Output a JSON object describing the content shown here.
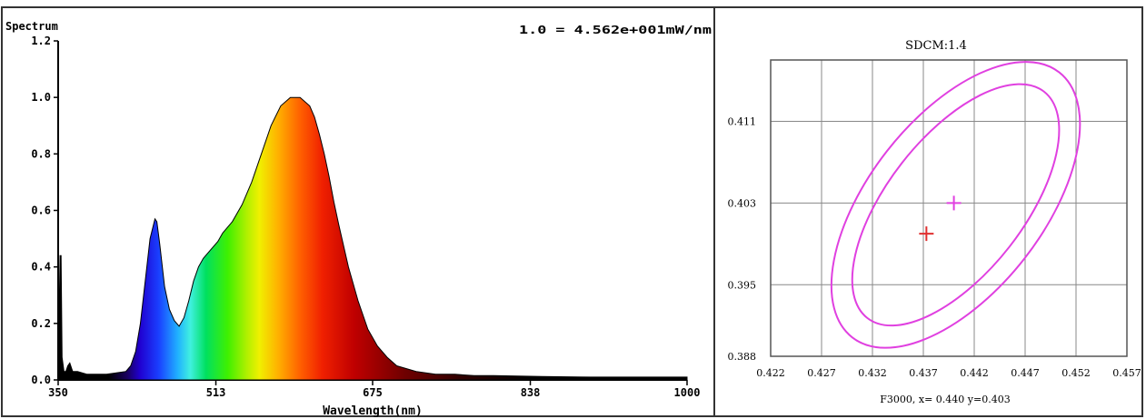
{
  "chart_data": [
    {
      "type": "area",
      "title": "Spectrum",
      "scale_note": "1.0 = 4.562e+001mW/nm",
      "xlabel": "Wavelength(nm)",
      "ylabel": "",
      "xlim": [
        350,
        1000
      ],
      "ylim": [
        0,
        1.2
      ],
      "x_ticks": [
        "350",
        "513",
        "675",
        "838",
        "1000"
      ],
      "y_ticks": [
        "0.0",
        "0.2",
        "0.4",
        "0.6",
        "0.8",
        "1.0",
        "1.2"
      ],
      "fill": "visible-spectrum gradient",
      "series": [
        {
          "x": [
            350,
            352,
            353,
            354,
            356,
            358,
            360,
            362,
            364,
            365,
            366,
            370,
            380,
            400,
            420,
            425,
            430,
            435,
            440,
            445,
            450,
            452,
            455,
            460,
            465,
            470,
            475,
            480,
            485,
            490,
            495,
            500,
            505,
            510,
            515,
            520,
            530,
            540,
            550,
            560,
            570,
            580,
            590,
            600,
            610,
            615,
            620,
            625,
            630,
            635,
            640,
            650,
            660,
            670,
            680,
            690,
            700,
            710,
            720,
            740,
            760,
            780,
            800,
            850,
            900,
            950,
            1000
          ],
          "values": [
            0.02,
            0.44,
            0.44,
            0.08,
            0.03,
            0.03,
            0.05,
            0.06,
            0.04,
            0.03,
            0.03,
            0.03,
            0.02,
            0.02,
            0.03,
            0.05,
            0.1,
            0.2,
            0.35,
            0.5,
            0.57,
            0.56,
            0.48,
            0.33,
            0.25,
            0.21,
            0.19,
            0.22,
            0.28,
            0.35,
            0.4,
            0.43,
            0.45,
            0.47,
            0.49,
            0.52,
            0.56,
            0.62,
            0.7,
            0.8,
            0.9,
            0.97,
            1.0,
            1.0,
            0.97,
            0.93,
            0.87,
            0.8,
            0.72,
            0.63,
            0.55,
            0.4,
            0.28,
            0.18,
            0.12,
            0.08,
            0.05,
            0.04,
            0.03,
            0.02,
            0.02,
            0.015,
            0.015,
            0.012,
            0.01,
            0.01,
            0.01
          ]
        }
      ]
    },
    {
      "type": "scatter",
      "title": "SDCM:1.4",
      "xlabel": "F3000, x= 0.440 y=0.403",
      "ylabel": "",
      "xlim": [
        0.422,
        0.457
      ],
      "ylim": [
        0.388,
        0.417
      ],
      "x_ticks": [
        "0.422",
        "0.427",
        "0.432",
        "0.437",
        "0.442",
        "0.447",
        "0.452",
        "0.457"
      ],
      "y_ticks": [
        "0.411",
        "0.403",
        "0.395",
        "0.388"
      ],
      "ellipse_center": {
        "x": 0.44,
        "y": 0.403
      },
      "ellipse_color": "#e040e0",
      "points": [
        {
          "x": 0.44,
          "y": 0.403,
          "color": "#e040e0"
        },
        {
          "x": 0.4373,
          "y": 0.4,
          "color": "#e03030"
        }
      ]
    }
  ]
}
